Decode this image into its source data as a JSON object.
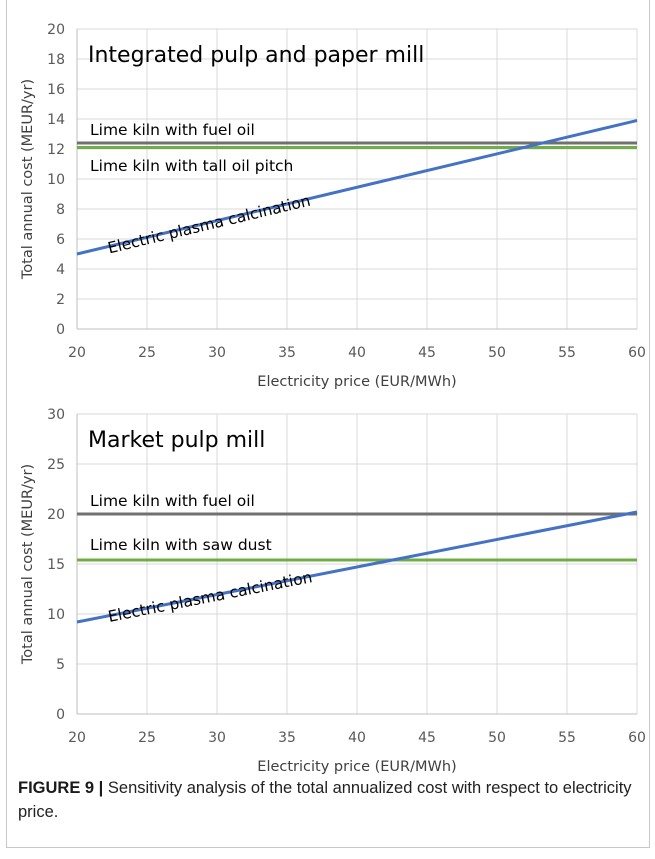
{
  "chart_data": [
    {
      "type": "line",
      "title": "Integrated pulp and paper mill",
      "xlabel": "Electricity price (EUR/MWh)",
      "ylabel": "Total annual cost (MEUR/yr)",
      "xlim": [
        20,
        60
      ],
      "ylim": [
        0,
        20
      ],
      "xticks": [
        20,
        25,
        30,
        35,
        40,
        45,
        50,
        55,
        60
      ],
      "yticks": [
        0,
        2,
        4,
        6,
        8,
        10,
        12,
        14,
        16,
        18,
        20
      ],
      "grid": true,
      "series": [
        {
          "name": "Lime kiln with fuel oil",
          "color": "#707070",
          "x": [
            20,
            60
          ],
          "y": [
            12.4,
            12.4
          ]
        },
        {
          "name": "Lime kiln with tall oil pitch",
          "color": "#70ad47",
          "x": [
            20,
            60
          ],
          "y": [
            12.1,
            12.1
          ]
        },
        {
          "name": "Electric plasma calcination",
          "color": "#4472c4",
          "x": [
            20,
            60
          ],
          "y": [
            5.0,
            13.9
          ]
        }
      ]
    },
    {
      "type": "line",
      "title": "Market pulp mill",
      "xlabel": "Electricity price (EUR/MWh)",
      "ylabel": "Total annual cost (MEUR/yr)",
      "xlim": [
        20,
        60
      ],
      "ylim": [
        0,
        30
      ],
      "xticks": [
        20,
        25,
        30,
        35,
        40,
        45,
        50,
        55,
        60
      ],
      "yticks": [
        0,
        5,
        10,
        15,
        20,
        25,
        30
      ],
      "grid": true,
      "series": [
        {
          "name": "Lime kiln with fuel oil",
          "color": "#707070",
          "x": [
            20,
            60
          ],
          "y": [
            20.0,
            20.0
          ]
        },
        {
          "name": "Lime kiln with saw dust",
          "color": "#70ad47",
          "x": [
            20,
            60
          ],
          "y": [
            15.4,
            15.4
          ]
        },
        {
          "name": "Electric plasma calcination",
          "color": "#4472c4",
          "x": [
            20,
            60
          ],
          "y": [
            9.2,
            20.2
          ]
        }
      ]
    }
  ],
  "caption": {
    "label": "FIGURE 9 |",
    "text": " Sensitivity analysis of the total annualized cost with respect to electricity price."
  }
}
